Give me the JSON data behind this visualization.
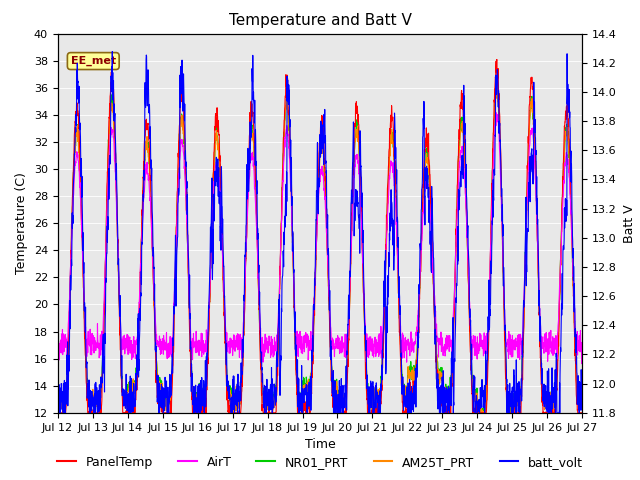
{
  "title": "Temperature and Batt V",
  "xlabel": "Time",
  "ylabel_left": "Temperature (C)",
  "ylabel_right": "Batt V",
  "ylim_left": [
    12,
    40
  ],
  "ylim_right": [
    11.8,
    14.4
  ],
  "yticks_left": [
    12,
    14,
    16,
    18,
    20,
    22,
    24,
    26,
    28,
    30,
    32,
    34,
    36,
    38,
    40
  ],
  "yticks_right": [
    11.8,
    12.0,
    12.2,
    12.4,
    12.6,
    12.8,
    13.0,
    13.2,
    13.4,
    13.6,
    13.8,
    14.0,
    14.2,
    14.4
  ],
  "xtick_labels": [
    "Jul 12",
    "Jul 13",
    "Jul 14",
    "Jul 15",
    "Jul 16",
    "Jul 17",
    "Jul 18",
    "Jul 19",
    "Jul 20",
    "Jul 21",
    "Jul 22",
    "Jul 23",
    "Jul 24",
    "Jul 25",
    "Jul 26",
    "Jul 27"
  ],
  "xtick_positions": [
    0,
    1,
    2,
    3,
    4,
    5,
    6,
    7,
    8,
    9,
    10,
    11,
    12,
    13,
    14,
    15
  ],
  "annotation_text": "EE_met",
  "colors": {
    "PanelTemp": "#ff0000",
    "AirT": "#ff00ff",
    "NR01_PRT": "#00cc00",
    "AM25T_PRT": "#ff8800",
    "batt_volt": "#0000ff"
  },
  "legend_labels": [
    "PanelTemp",
    "AirT",
    "NR01_PRT",
    "AM25T_PRT",
    "batt_volt"
  ],
  "background_color": "#e8e8e8",
  "title_fontsize": 11,
  "axis_label_fontsize": 9,
  "tick_fontsize": 8,
  "legend_fontsize": 9,
  "n_days": 15,
  "points_per_day": 144
}
